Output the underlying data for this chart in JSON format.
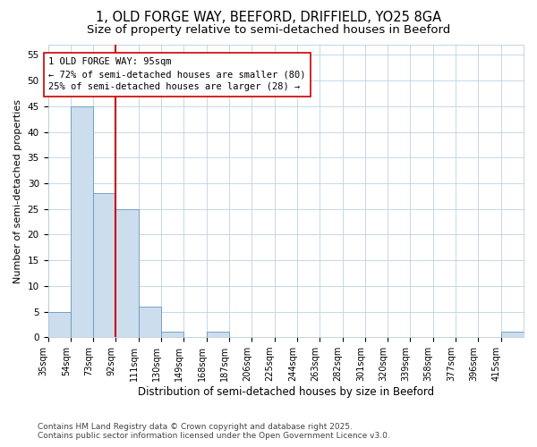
{
  "title1": "1, OLD FORGE WAY, BEEFORD, DRIFFIELD, YO25 8GA",
  "title2": "Size of property relative to semi-detached houses in Beeford",
  "xlabel": "Distribution of semi-detached houses by size in Beeford",
  "ylabel": "Number of semi-detached properties",
  "bin_edges": [
    35,
    54,
    73,
    92,
    111,
    130,
    149,
    168,
    187,
    206,
    225,
    244,
    263,
    282,
    301,
    320,
    339,
    358,
    377,
    396,
    415,
    434
  ],
  "counts": [
    5,
    45,
    28,
    25,
    6,
    1,
    0,
    1,
    0,
    0,
    0,
    0,
    0,
    0,
    0,
    0,
    0,
    0,
    0,
    0,
    1
  ],
  "tick_labels": [
    "35sqm",
    "54sqm",
    "73sqm",
    "92sqm",
    "111sqm",
    "130sqm",
    "149sqm",
    "168sqm",
    "187sqm",
    "206sqm",
    "225sqm",
    "244sqm",
    "263sqm",
    "282sqm",
    "301sqm",
    "320sqm",
    "339sqm",
    "358sqm",
    "377sqm",
    "396sqm",
    "415sqm"
  ],
  "bar_color": "#ccdded",
  "bar_edge_color": "#6699bb",
  "vline_x": 92,
  "vline_color": "#cc0000",
  "annotation_title": "1 OLD FORGE WAY: 95sqm",
  "annotation_line1": "← 72% of semi-detached houses are smaller (80)",
  "annotation_line2": "25% of semi-detached houses are larger (28) →",
  "annotation_box_color": "#cc0000",
  "ylim": [
    0,
    57
  ],
  "yticks": [
    0,
    5,
    10,
    15,
    20,
    25,
    30,
    35,
    40,
    45,
    50,
    55
  ],
  "footnote1": "Contains HM Land Registry data © Crown copyright and database right 2025.",
  "footnote2": "Contains public sector information licensed under the Open Government Licence v3.0.",
  "plot_bg_color": "#ffffff",
  "fig_bg_color": "#ffffff",
  "grid_color": "#c5d8e8",
  "title1_fontsize": 10.5,
  "title2_fontsize": 9.5,
  "xlabel_fontsize": 8.5,
  "ylabel_fontsize": 8,
  "tick_fontsize": 7,
  "footnote_fontsize": 6.5,
  "annot_fontsize": 7.5
}
